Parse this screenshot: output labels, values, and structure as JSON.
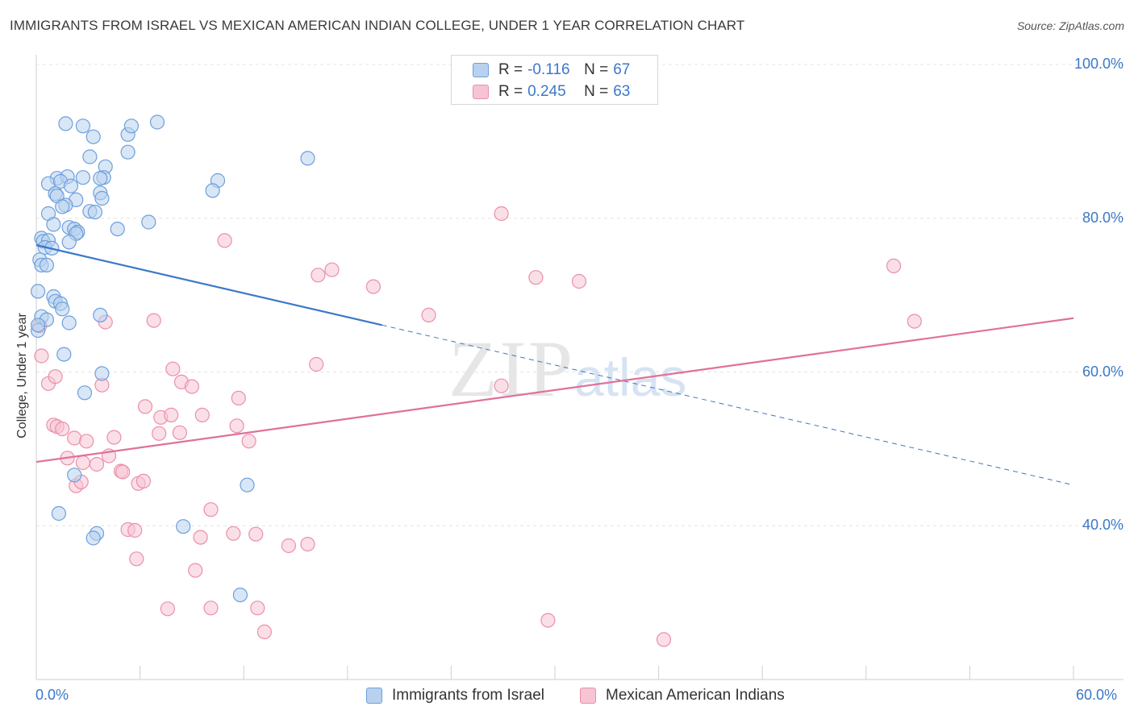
{
  "header": {
    "title": "IMMIGRANTS FROM ISRAEL VS MEXICAN AMERICAN INDIAN COLLEGE, UNDER 1 YEAR CORRELATION CHART",
    "source": "Source: ZipAtlas.com"
  },
  "watermark": {
    "zip": "ZIP",
    "atlas": "atlas"
  },
  "legend": {
    "rows": [
      {
        "r_label": "R =",
        "r_value": "-0.116",
        "n_label": "N =",
        "n_value": "67"
      },
      {
        "r_label": "R =",
        "r_value": "0.245",
        "n_label": "N =",
        "n_value": "63"
      }
    ]
  },
  "colors": {
    "blue_fill": "#b8d1ee",
    "blue_stroke": "#6d9fdc",
    "blue_line": "#3b78c9",
    "pink_fill": "#f6c4d3",
    "pink_stroke": "#eb8fab",
    "pink_line": "#e0709a",
    "axis_text": "#3b78c9",
    "grid": "#e4e4e4"
  },
  "chart_data": {
    "type": "scatter",
    "title": "IMMIGRANTS FROM ISRAEL VS MEXICAN AMERICAN INDIAN COLLEGE, UNDER 1 YEAR CORRELATION CHART",
    "xlabel": "",
    "ylabel": "College, Under 1 year",
    "xlim": [
      0,
      60
    ],
    "ylim": [
      20,
      100
    ],
    "x_tick_labels": [
      "0.0%",
      "60.0%"
    ],
    "y_ticks": [
      40,
      60,
      80,
      100
    ],
    "y_tick_labels": [
      "40.0%",
      "60.0%",
      "80.0%",
      "100.0%"
    ],
    "grid": true,
    "legend_position": "bottom",
    "series": [
      {
        "name": "Immigrants from Israel",
        "color": "#6d9fdc",
        "R": -0.116,
        "N": 67,
        "trend": {
          "x0": 0,
          "y0": 76.5,
          "x1": 20,
          "y1": 66.1,
          "dash_to_x": 60,
          "dash_to_y": 45.3
        },
        "points": [
          [
            1.7,
            92.3
          ],
          [
            2.7,
            92.0
          ],
          [
            3.3,
            90.6
          ],
          [
            5.3,
            90.9
          ],
          [
            5.5,
            92.0
          ],
          [
            7.0,
            92.5
          ],
          [
            3.1,
            88.0
          ],
          [
            5.3,
            88.6
          ],
          [
            4.0,
            86.7
          ],
          [
            15.7,
            87.8
          ],
          [
            1.2,
            85.2
          ],
          [
            1.8,
            85.4
          ],
          [
            2.7,
            85.3
          ],
          [
            0.7,
            84.5
          ],
          [
            1.4,
            84.8
          ],
          [
            2.0,
            84.2
          ],
          [
            3.9,
            85.3
          ],
          [
            3.7,
            85.2
          ],
          [
            10.5,
            84.9
          ],
          [
            10.2,
            83.6
          ],
          [
            1.1,
            83.2
          ],
          [
            3.7,
            83.3
          ],
          [
            1.2,
            82.9
          ],
          [
            2.3,
            82.4
          ],
          [
            3.8,
            82.6
          ],
          [
            1.7,
            81.7
          ],
          [
            1.5,
            81.5
          ],
          [
            3.1,
            80.9
          ],
          [
            3.4,
            80.8
          ],
          [
            0.7,
            80.6
          ],
          [
            1.0,
            79.2
          ],
          [
            6.5,
            79.5
          ],
          [
            1.9,
            78.8
          ],
          [
            2.2,
            78.6
          ],
          [
            4.7,
            78.6
          ],
          [
            2.4,
            78.2
          ],
          [
            2.3,
            78.0
          ],
          [
            0.3,
            77.4
          ],
          [
            0.4,
            77.0
          ],
          [
            0.7,
            77.1
          ],
          [
            1.9,
            76.9
          ],
          [
            0.5,
            76.2
          ],
          [
            0.9,
            76.1
          ],
          [
            0.2,
            74.6
          ],
          [
            0.3,
            73.9
          ],
          [
            0.6,
            73.9
          ],
          [
            0.1,
            70.5
          ],
          [
            1.0,
            69.8
          ],
          [
            1.1,
            69.2
          ],
          [
            1.4,
            68.9
          ],
          [
            1.5,
            68.2
          ],
          [
            3.7,
            67.4
          ],
          [
            0.3,
            67.2
          ],
          [
            0.6,
            66.8
          ],
          [
            1.9,
            66.4
          ],
          [
            1.6,
            62.3
          ],
          [
            3.8,
            59.8
          ],
          [
            2.8,
            57.3
          ],
          [
            2.2,
            46.6
          ],
          [
            12.2,
            45.3
          ],
          [
            1.3,
            41.6
          ],
          [
            8.5,
            39.9
          ],
          [
            3.5,
            39.0
          ],
          [
            3.3,
            38.4
          ],
          [
            11.8,
            31.0
          ],
          [
            0.1,
            65.4
          ],
          [
            0.1,
            66.1
          ]
        ]
      },
      {
        "name": "Mexican American Indians",
        "color": "#eb8fab",
        "R": 0.245,
        "N": 63,
        "trend": {
          "x0": 0,
          "y0": 48.3,
          "x1": 60,
          "y1": 67.0
        },
        "points": [
          [
            0.2,
            66.0
          ],
          [
            0.3,
            62.1
          ],
          [
            0.7,
            58.5
          ],
          [
            1.0,
            53.1
          ],
          [
            1.2,
            52.9
          ],
          [
            1.5,
            52.6
          ],
          [
            2.2,
            51.4
          ],
          [
            2.9,
            51.0
          ],
          [
            4.5,
            51.5
          ],
          [
            1.8,
            48.8
          ],
          [
            2.7,
            48.2
          ],
          [
            3.5,
            48.0
          ],
          [
            4.2,
            49.1
          ],
          [
            4.9,
            47.1
          ],
          [
            5.0,
            47.0
          ],
          [
            5.9,
            45.5
          ],
          [
            6.2,
            45.8
          ],
          [
            2.3,
            45.2
          ],
          [
            2.6,
            45.7
          ],
          [
            3.8,
            58.3
          ],
          [
            4.0,
            66.5
          ],
          [
            6.8,
            66.7
          ],
          [
            7.9,
            60.4
          ],
          [
            8.4,
            58.7
          ],
          [
            9.0,
            58.1
          ],
          [
            6.3,
            55.5
          ],
          [
            7.2,
            54.1
          ],
          [
            7.8,
            54.4
          ],
          [
            9.6,
            54.4
          ],
          [
            10.9,
            77.1
          ],
          [
            11.7,
            56.6
          ],
          [
            11.6,
            53.0
          ],
          [
            12.3,
            51.0
          ],
          [
            7.1,
            52.0
          ],
          [
            8.3,
            52.1
          ],
          [
            10.1,
            42.1
          ],
          [
            5.3,
            39.5
          ],
          [
            5.7,
            39.4
          ],
          [
            9.5,
            38.5
          ],
          [
            11.4,
            39.0
          ],
          [
            12.7,
            38.9
          ],
          [
            14.6,
            37.4
          ],
          [
            15.7,
            37.6
          ],
          [
            5.8,
            35.7
          ],
          [
            9.2,
            34.2
          ],
          [
            7.6,
            29.2
          ],
          [
            10.1,
            29.3
          ],
          [
            12.8,
            29.3
          ],
          [
            13.2,
            26.2
          ],
          [
            16.3,
            72.6
          ],
          [
            17.1,
            73.3
          ],
          [
            19.5,
            71.1
          ],
          [
            22.7,
            67.4
          ],
          [
            16.2,
            61.0
          ],
          [
            26.9,
            58.2
          ],
          [
            26.9,
            80.6
          ],
          [
            28.9,
            72.3
          ],
          [
            31.4,
            71.8
          ],
          [
            36.3,
            25.2
          ],
          [
            29.6,
            27.7
          ],
          [
            49.6,
            73.8
          ],
          [
            50.8,
            66.6
          ],
          [
            1.1,
            59.4
          ]
        ]
      }
    ]
  }
}
